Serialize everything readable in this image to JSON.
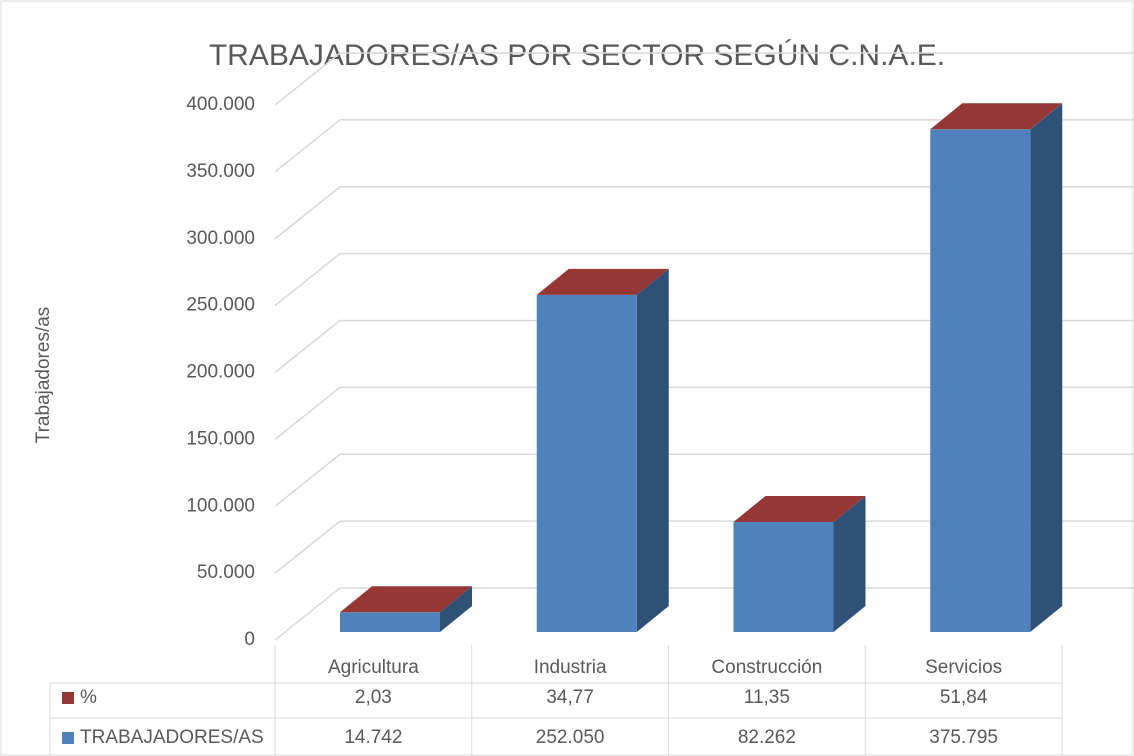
{
  "chart_data": {
    "type": "bar3d",
    "title": "TRABAJADORES/AS POR SECTOR SEGÚN C.N.A.E.",
    "y_label": "Trabajadores/as",
    "categories": [
      "Agricultura",
      "Industria",
      "Construcción",
      "Servicios"
    ],
    "series": [
      {
        "name": "%",
        "color": "#953735",
        "values": [
          2.03,
          34.77,
          11.35,
          51.84
        ],
        "value_labels": [
          "2,03",
          "34,77",
          "11,35",
          "51,84"
        ]
      },
      {
        "name": "TRABAJADORES/AS",
        "color": "#4f81bd",
        "values": [
          14742,
          252050,
          82262,
          375795
        ],
        "value_labels": [
          "14.742",
          "252.050",
          "82.262",
          "375.795"
        ]
      }
    ],
    "ylim": [
      0,
      400000
    ],
    "yticks": [
      0,
      {
        "value": 50000,
        "label": "50.000"
      },
      {
        "value": 100000,
        "label": "100.000"
      },
      {
        "value": 150000,
        "label": "150.000"
      },
      {
        "value": 200000,
        "label": "200.000"
      },
      {
        "value": 250000,
        "label": "250.000"
      },
      {
        "value": 300000,
        "label": "300.000"
      },
      {
        "value": 350000,
        "label": "350.000"
      },
      {
        "value": 400000,
        "label": "400.000"
      }
    ],
    "grid": true
  }
}
